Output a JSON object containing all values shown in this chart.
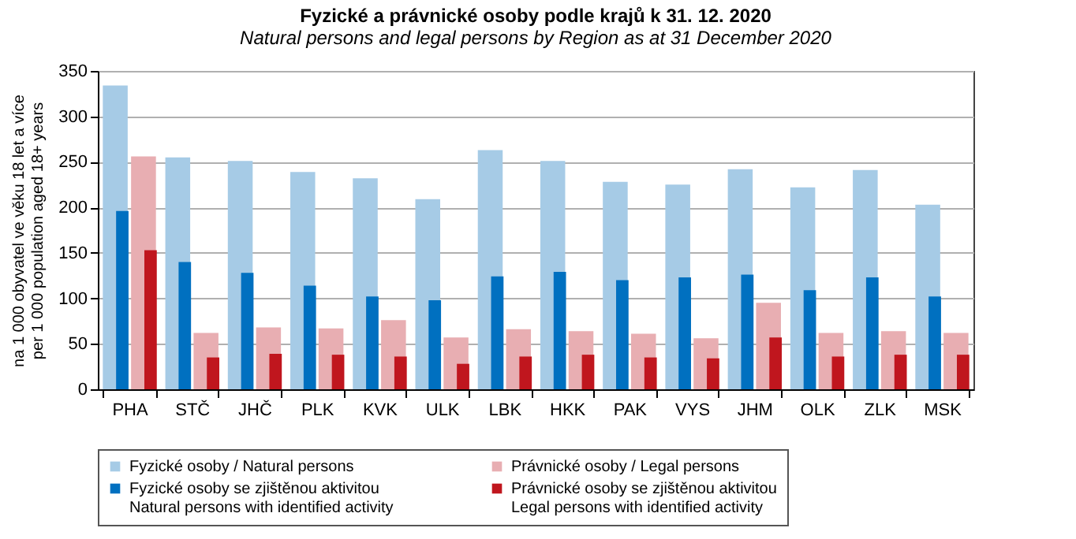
{
  "chart_data": {
    "type": "bar",
    "title": "Fyzické a právnické osoby podle krajů k 31. 12. 2020",
    "subtitle": "Natural persons and legal persons by Region as at 31 December 2020",
    "ylabel": "na 1 000 obyvatel ve věku 18 let a více\nper 1 000 population aged 18+ years",
    "categories": [
      "PHA",
      "STČ",
      "JHČ",
      "PLK",
      "KVK",
      "ULK",
      "LBK",
      "HKK",
      "PAK",
      "VYS",
      "JHM",
      "OLK",
      "ZLK",
      "MSK"
    ],
    "series": [
      {
        "name": "Fyzické osoby / Natural persons",
        "color": "#a6cbe6",
        "values": [
          334,
          255,
          251,
          239,
          232,
          209,
          263,
          251,
          228,
          225,
          242,
          222,
          241,
          203
        ]
      },
      {
        "name": "Právnické osoby / Legal persons",
        "color": "#e8aeb2",
        "values": [
          256,
          62,
          68,
          67,
          76,
          57,
          66,
          64,
          61,
          56,
          95,
          62,
          64,
          62
        ]
      },
      {
        "name": "Fyzické osoby se zjištěnou aktivitou\nNatural persons with identified activity",
        "color": "#0070c0",
        "values": [
          196,
          140,
          128,
          114,
          102,
          98,
          124,
          129,
          120,
          123,
          126,
          109,
          123,
          102
        ]
      },
      {
        "name": "Právnické osoby se zjištěnou aktivitou\nLegal persons with identified activity",
        "color": "#c0161e",
        "values": [
          153,
          35,
          39,
          38,
          36,
          28,
          36,
          38,
          35,
          34,
          57,
          36,
          38,
          38
        ]
      }
    ],
    "ylim": [
      0,
      350
    ],
    "yticks": [
      0,
      50,
      100,
      150,
      200,
      250,
      300,
      350
    ],
    "grid": "y",
    "legend": "bottom"
  }
}
